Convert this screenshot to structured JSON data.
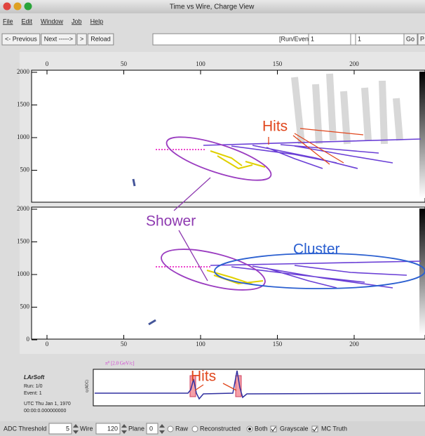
{
  "window": {
    "title": "Time vs Wire, Charge View"
  },
  "menu": [
    "File",
    "Edit",
    "Window",
    "Job",
    "Help"
  ],
  "toolbar": {
    "buttons": [
      "<- Previous",
      "Next ----->",
      ">",
      "Reload"
    ],
    "run_event_label": "[Run/Event]=",
    "run": "1",
    "event": "1",
    "go": "Go",
    "next_button": "P"
  },
  "display": {
    "top_axis_ticks": [
      "0",
      "50",
      "100",
      "150",
      "200"
    ],
    "upper_y_ticks": [
      "2000",
      "1500",
      "1000",
      "500"
    ],
    "lower_y_ticks": [
      "2000",
      "1500",
      "1000",
      "500",
      "0"
    ],
    "bottom_axis_ticks": [
      "0",
      "50",
      "100",
      "150",
      "200"
    ]
  },
  "annotations": {
    "hits_top": "Hits",
    "shower": "Shower",
    "cluster": "Cluster",
    "hits_bottom": "Hits"
  },
  "info": {
    "program": "LArSoft",
    "run": "Run: 1/0",
    "event": "Event: 1",
    "date": "UTC Thu Jan 1, 1970",
    "time": "00:00:0.000000000"
  },
  "waveform": {
    "title": "π⁰ [2.0 GeV/c]",
    "y_label": "q (ADC)"
  },
  "controls": {
    "adc_threshold_label": "ADC Threshold",
    "adc_threshold": "5",
    "wire_label": "Wire",
    "wire": "120",
    "plane_label": "Plane",
    "plane": "0",
    "raw": "Raw",
    "reconstructed": "Reconstructed",
    "both": "Both",
    "grayscale": "Grayscale",
    "mc_truth": "MC Truth"
  }
}
